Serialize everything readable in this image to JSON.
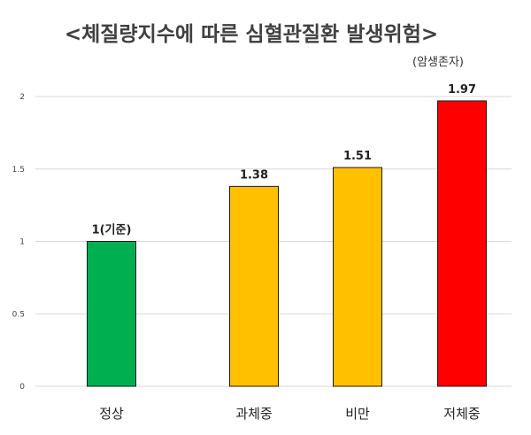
{
  "chart_data": {
    "type": "bar",
    "title": "<체질량지수에 따른 심혈관질환 발생위험>",
    "subtitle": "(암생존자)",
    "xlabel": "",
    "ylabel": "",
    "categories": [
      "정상",
      "과체중",
      "비만",
      "저체중"
    ],
    "values": [
      1,
      1.38,
      1.51,
      1.97
    ],
    "data_labels": [
      "1(기준)",
      "1.38",
      "1.51",
      "1.97"
    ],
    "bar_colors": [
      "#00b050",
      "#ffc000",
      "#ffc000",
      "#ff0000"
    ],
    "ylim": [
      0,
      2
    ],
    "yticks": [
      0,
      0.5,
      1,
      1.5,
      2
    ],
    "ytick_labels": [
      "0",
      "0.5",
      "1",
      "1.5",
      "2"
    ],
    "grid": true,
    "legend": "none"
  }
}
